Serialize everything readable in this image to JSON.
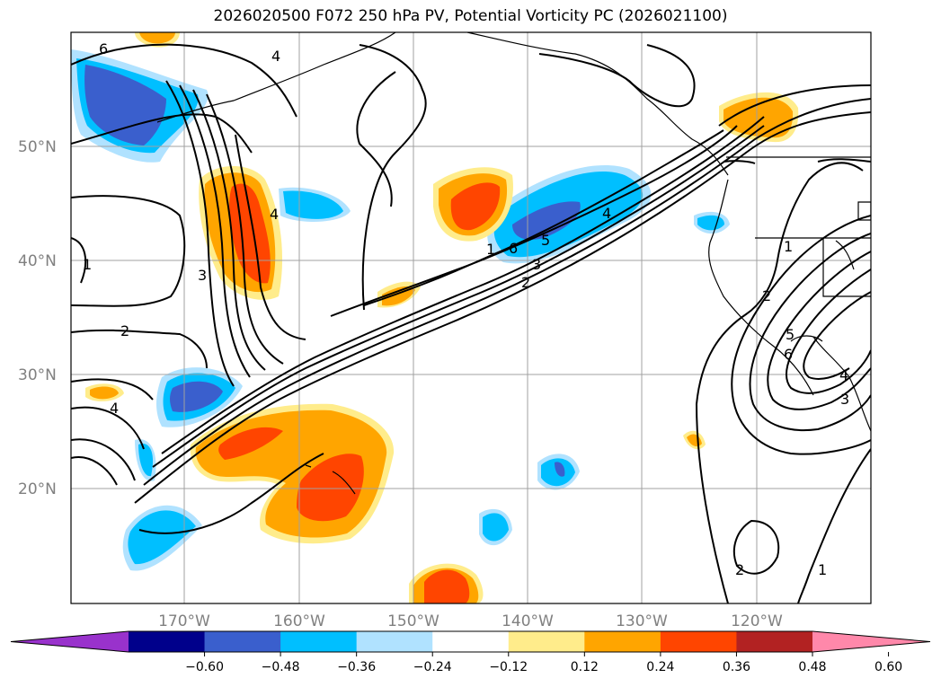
{
  "title": "2026020500 F072 250 hPa PV, Potential Vorticity PC (2026021100)",
  "lat_labels": [
    "50°N",
    "40°N",
    "30°N",
    "20°N"
  ],
  "lon_labels": [
    "170°W",
    "160°W",
    "150°W",
    "140°W",
    "130°W",
    "120°W"
  ],
  "contour_labels": [
    "6",
    "4",
    "1",
    "3",
    "4",
    "2",
    "4",
    "1",
    "6",
    "5",
    "4",
    "3",
    "2",
    "1",
    "2",
    "5",
    "6",
    "3",
    "4",
    "2",
    "1"
  ],
  "colorbar": {
    "ticks": [
      "−0.60",
      "−0.48",
      "−0.36",
      "−0.24",
      "−0.12",
      "0.12",
      "0.24",
      "0.36",
      "0.48",
      "0.60"
    ],
    "colors": [
      "#9932cc",
      "#00008b",
      "#3a5fcd",
      "#00bfff",
      "#b0e2ff",
      "#ffffff",
      "#ffec8b",
      "#ffa500",
      "#ff4500",
      "#b22222",
      "#ff88aa"
    ]
  },
  "colors": {
    "fill_neg_1": "#b0e2ff",
    "fill_neg_2": "#00bfff",
    "fill_neg_3": "#3a5fcd",
    "fill_pos_1": "#ffec8b",
    "fill_pos_2": "#ffa500",
    "fill_pos_3": "#ff4500"
  }
}
